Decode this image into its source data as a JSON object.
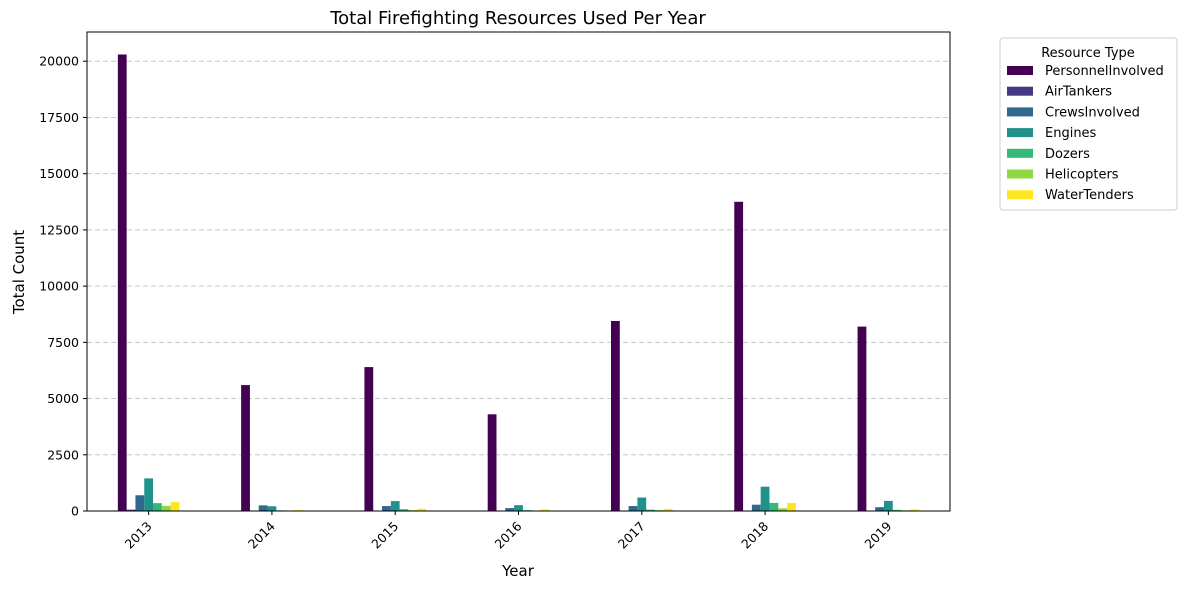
{
  "chart_data": {
    "type": "bar",
    "title": "Total Firefighting Resources Used Per Year",
    "xlabel": "Year",
    "ylabel": "Total Count",
    "ylim": [
      0,
      21300
    ],
    "yticks": [
      0,
      2500,
      5000,
      7500,
      10000,
      12500,
      15000,
      17500,
      20000
    ],
    "grid": "y, dashed",
    "legend_title": "Resource Type",
    "legend_placement": "outside-top-right",
    "categories": [
      "2013",
      "2014",
      "2015",
      "2016",
      "2017",
      "2018",
      "2019"
    ],
    "series": [
      {
        "name": "PersonnelInvolved",
        "color": "#440154",
        "values": [
          20300,
          5600,
          6400,
          4300,
          8450,
          13750,
          8200
        ]
      },
      {
        "name": "AirTankers",
        "color": "#443983",
        "values": [
          60,
          0,
          10,
          0,
          0,
          20,
          10
        ]
      },
      {
        "name": "CrewsInvolved",
        "color": "#31688e",
        "values": [
          700,
          250,
          220,
          130,
          220,
          280,
          170
        ]
      },
      {
        "name": "Engines",
        "color": "#21918c",
        "values": [
          1450,
          210,
          440,
          260,
          600,
          1080,
          450
        ]
      },
      {
        "name": "Dozers",
        "color": "#35b779",
        "values": [
          350,
          30,
          80,
          40,
          60,
          360,
          50
        ]
      },
      {
        "name": "Helicopters",
        "color": "#90d743",
        "values": [
          230,
          10,
          40,
          20,
          40,
          120,
          30
        ]
      },
      {
        "name": "WaterTenders",
        "color": "#fde725",
        "values": [
          400,
          40,
          100,
          70,
          90,
          360,
          70
        ]
      }
    ]
  }
}
